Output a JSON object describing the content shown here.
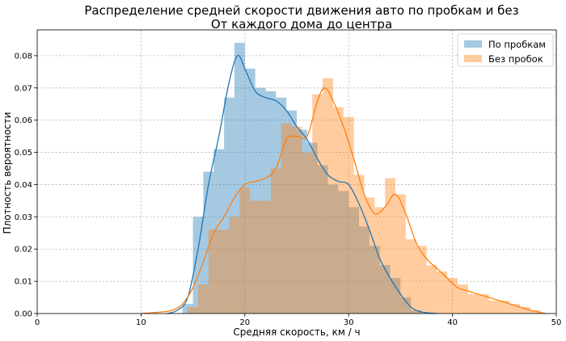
{
  "chart_data": {
    "type": "histogram",
    "title": "Распределение средней скорости движения авто по пробкам и без",
    "subtitle": "От каждого дома до центра",
    "xlabel": "Средняя скорость, км / ч",
    "ylabel": "Плотность вероятности",
    "xlim": [
      0,
      50
    ],
    "ylim": [
      0,
      0.088
    ],
    "xticks": [
      0,
      10,
      20,
      30,
      40,
      50
    ],
    "yticks": [
      0.0,
      0.01,
      0.02,
      0.03,
      0.04,
      0.05,
      0.06,
      0.07,
      0.08
    ],
    "ytick_labels": [
      "0.00",
      "0.01",
      "0.02",
      "0.03",
      "0.04",
      "0.05",
      "0.06",
      "0.07",
      "0.08"
    ],
    "grid": true,
    "legend_position": "top-right",
    "series": [
      {
        "name": "По пробкам",
        "color": "#1f77b4",
        "bar_color": "#aac8e0",
        "bins": [
          [
            14.0,
            15.0,
            0.003
          ],
          [
            15.0,
            16.0,
            0.03
          ],
          [
            16.0,
            17.0,
            0.044
          ],
          [
            17.0,
            18.0,
            0.051
          ],
          [
            18.0,
            19.0,
            0.067
          ],
          [
            19.0,
            20.0,
            0.084
          ],
          [
            20.0,
            21.0,
            0.076
          ],
          [
            21.0,
            22.0,
            0.07
          ],
          [
            22.0,
            23.0,
            0.069
          ],
          [
            23.0,
            24.0,
            0.067
          ],
          [
            24.0,
            25.0,
            0.063
          ],
          [
            25.0,
            26.0,
            0.057
          ],
          [
            26.0,
            27.0,
            0.053
          ],
          [
            27.0,
            28.0,
            0.046
          ],
          [
            28.0,
            29.0,
            0.04
          ],
          [
            29.0,
            30.0,
            0.038
          ],
          [
            30.0,
            31.0,
            0.033
          ],
          [
            31.0,
            32.0,
            0.027
          ],
          [
            32.0,
            33.0,
            0.021
          ],
          [
            33.0,
            34.0,
            0.015
          ],
          [
            34.0,
            35.0,
            0.011
          ],
          [
            35.0,
            36.0,
            0.005
          ],
          [
            36.0,
            37.0,
            0.001
          ]
        ],
        "kde": [
          [
            12.5,
            0.0
          ],
          [
            13.5,
            0.001
          ],
          [
            14.5,
            0.005
          ],
          [
            15.5,
            0.02
          ],
          [
            16.5,
            0.04
          ],
          [
            17.5,
            0.055
          ],
          [
            18.5,
            0.072
          ],
          [
            19.3,
            0.08
          ],
          [
            20.0,
            0.076
          ],
          [
            21.0,
            0.069
          ],
          [
            22.0,
            0.067
          ],
          [
            23.0,
            0.066
          ],
          [
            24.0,
            0.063
          ],
          [
            25.0,
            0.058
          ],
          [
            26.0,
            0.054
          ],
          [
            27.0,
            0.048
          ],
          [
            28.0,
            0.043
          ],
          [
            29.0,
            0.041
          ],
          [
            30.0,
            0.04
          ],
          [
            31.0,
            0.034
          ],
          [
            32.0,
            0.026
          ],
          [
            33.0,
            0.017
          ],
          [
            34.0,
            0.011
          ],
          [
            35.0,
            0.006
          ],
          [
            36.0,
            0.002
          ],
          [
            37.0,
            0.0005
          ],
          [
            38.5,
            0.0
          ]
        ]
      },
      {
        "name": "Без пробок",
        "color": "#ff7f0e",
        "bar_color": "#ffbf86",
        "bins": [
          [
            14.5,
            15.5,
            0.002
          ],
          [
            15.5,
            16.5,
            0.009
          ],
          [
            16.5,
            17.5,
            0.026
          ],
          [
            17.5,
            18.5,
            0.026
          ],
          [
            18.5,
            19.5,
            0.03
          ],
          [
            19.5,
            20.5,
            0.039
          ],
          [
            20.5,
            21.5,
            0.035
          ],
          [
            21.5,
            22.5,
            0.035
          ],
          [
            22.5,
            23.5,
            0.045
          ],
          [
            23.5,
            24.5,
            0.059
          ],
          [
            24.5,
            25.5,
            0.058
          ],
          [
            25.5,
            26.5,
            0.05
          ],
          [
            26.5,
            27.5,
            0.068
          ],
          [
            27.5,
            28.5,
            0.073
          ],
          [
            28.5,
            29.5,
            0.064
          ],
          [
            29.5,
            30.5,
            0.061
          ],
          [
            30.5,
            31.5,
            0.043
          ],
          [
            31.5,
            32.5,
            0.036
          ],
          [
            32.5,
            33.5,
            0.033
          ],
          [
            33.5,
            34.5,
            0.042
          ],
          [
            34.5,
            35.5,
            0.037
          ],
          [
            35.5,
            36.5,
            0.023
          ],
          [
            36.5,
            37.5,
            0.021
          ],
          [
            37.5,
            38.5,
            0.015
          ],
          [
            38.5,
            39.5,
            0.013
          ],
          [
            39.5,
            40.5,
            0.011
          ],
          [
            40.5,
            41.5,
            0.009
          ],
          [
            41.5,
            42.5,
            0.006
          ],
          [
            42.5,
            43.5,
            0.006
          ],
          [
            43.5,
            44.5,
            0.004
          ],
          [
            44.5,
            45.5,
            0.004
          ],
          [
            45.5,
            46.5,
            0.003
          ],
          [
            46.5,
            47.5,
            0.002
          ],
          [
            47.5,
            48.5,
            0.001
          ]
        ],
        "kde": [
          [
            10.0,
            0.0
          ],
          [
            12.0,
            0.0005
          ],
          [
            13.0,
            0.001
          ],
          [
            14.0,
            0.003
          ],
          [
            15.0,
            0.008
          ],
          [
            16.0,
            0.016
          ],
          [
            17.0,
            0.025
          ],
          [
            18.0,
            0.03
          ],
          [
            19.0,
            0.036
          ],
          [
            20.0,
            0.04
          ],
          [
            21.0,
            0.041
          ],
          [
            22.0,
            0.042
          ],
          [
            23.0,
            0.045
          ],
          [
            24.0,
            0.054
          ],
          [
            25.0,
            0.055
          ],
          [
            26.0,
            0.055
          ],
          [
            27.0,
            0.066
          ],
          [
            27.7,
            0.07
          ],
          [
            28.5,
            0.066
          ],
          [
            29.5,
            0.058
          ],
          [
            30.5,
            0.048
          ],
          [
            31.5,
            0.037
          ],
          [
            32.5,
            0.031
          ],
          [
            33.5,
            0.033
          ],
          [
            34.5,
            0.037
          ],
          [
            35.5,
            0.031
          ],
          [
            36.5,
            0.022
          ],
          [
            37.5,
            0.017
          ],
          [
            38.5,
            0.014
          ],
          [
            39.5,
            0.011
          ],
          [
            40.5,
            0.008
          ],
          [
            41.5,
            0.007
          ],
          [
            42.5,
            0.006
          ],
          [
            43.5,
            0.005
          ],
          [
            44.5,
            0.004
          ],
          [
            45.5,
            0.003
          ],
          [
            46.5,
            0.002
          ],
          [
            47.5,
            0.001
          ],
          [
            49.0,
            0.0
          ]
        ]
      }
    ]
  }
}
